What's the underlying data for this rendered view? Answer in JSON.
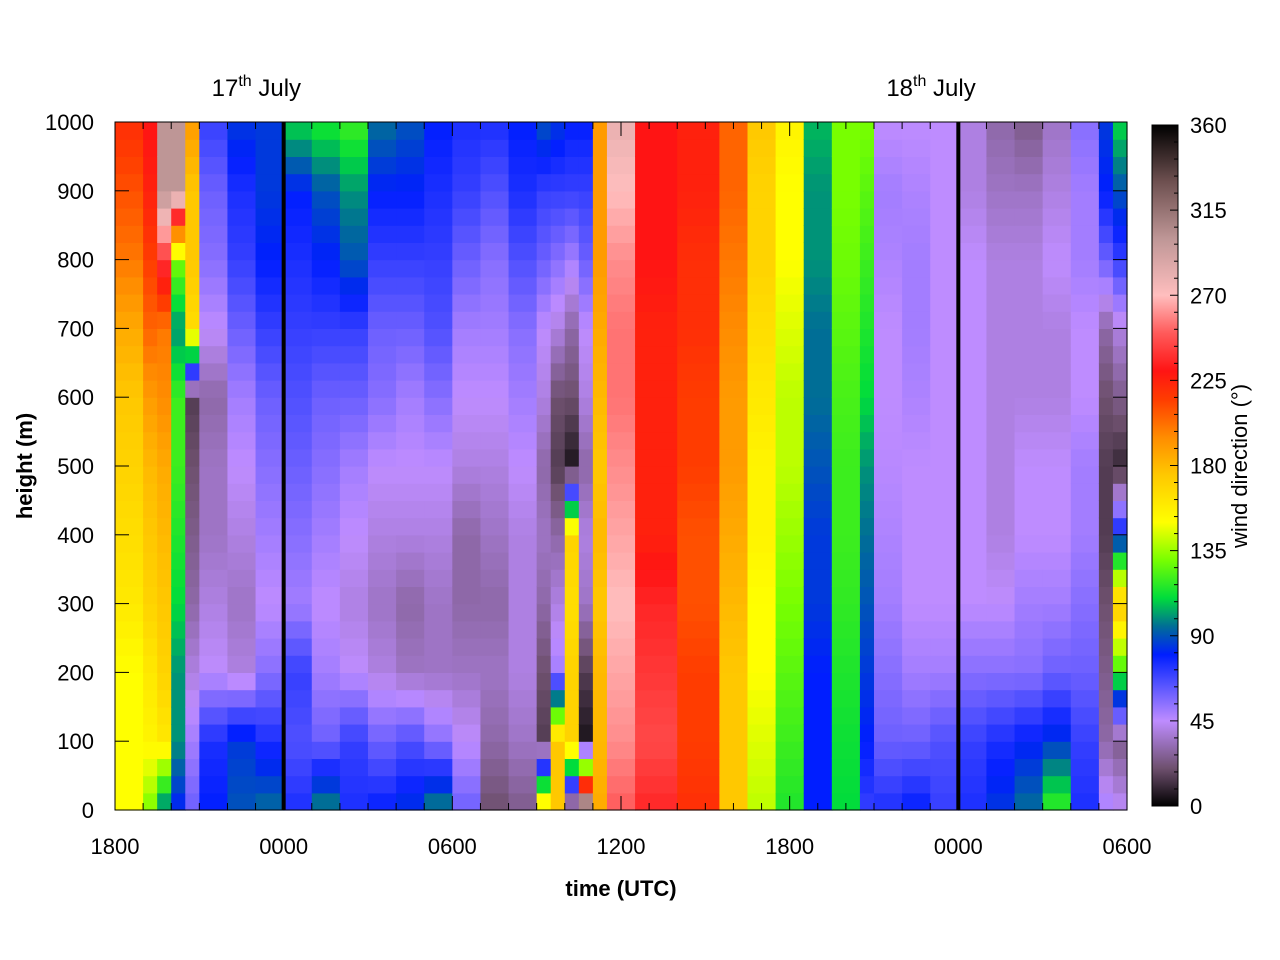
{
  "chart_data": {
    "type": "heatmap",
    "title": "",
    "xlabel": "time (UTC)",
    "ylabel": "height (m)",
    "colorbar_label": "wind direction (°)",
    "x_tick_labels": [
      "1800",
      "0000",
      "0600",
      "1200",
      "1800",
      "0000",
      "0600"
    ],
    "x_hours_from_start": [
      0,
      6,
      12,
      18,
      24,
      30,
      36
    ],
    "xlim_hours": [
      0,
      36
    ],
    "ylim": [
      0,
      1000
    ],
    "y_ticks": [
      0,
      100,
      200,
      300,
      400,
      500,
      600,
      700,
      800,
      900,
      1000
    ],
    "colorbar_ticks": [
      0,
      45,
      90,
      135,
      180,
      225,
      270,
      315,
      360
    ],
    "colorbar_range": [
      0,
      360
    ],
    "day_markers": [
      {
        "label_main": "17",
        "label_sup": "th",
        "label_rest": " July",
        "x_hour": 6
      },
      {
        "label_main": "18",
        "label_sup": "th",
        "label_rest": " July",
        "x_hour": 30
      }
    ],
    "heights_m": [
      0,
      100,
      200,
      300,
      400,
      500,
      600,
      700,
      800,
      900,
      1000
    ],
    "columns": [
      {
        "t": 0.0,
        "dir": [
          150,
          150,
          150,
          160,
          165,
          170,
          175,
          185,
          200,
          210,
          220
        ]
      },
      {
        "t": 1.0,
        "dir": [
          130,
          155,
          160,
          170,
          175,
          180,
          190,
          205,
          215,
          225,
          230
        ]
      },
      {
        "t": 1.5,
        "dir": [
          95,
          160,
          170,
          175,
          180,
          185,
          195,
          200,
          240,
          300,
          300
        ]
      },
      {
        "t": 2.0,
        "dir": [
          80,
          100,
          100,
          110,
          115,
          120,
          120,
          100,
          130,
          300,
          300
        ]
      },
      {
        "t": 2.5,
        "dir": [
          60,
          50,
          40,
          30,
          25,
          20,
          15,
          165,
          175,
          175,
          190
        ]
      },
      {
        "t": 3.0,
        "dir": [
          80,
          75,
          45,
          40,
          35,
          35,
          30,
          45,
          55,
          60,
          70
        ]
      },
      {
        "t": 4.0,
        "dir": [
          90,
          85,
          40,
          35,
          40,
          45,
          50,
          60,
          70,
          75,
          85
        ]
      },
      {
        "t": 5.0,
        "dir": [
          95,
          75,
          55,
          45,
          50,
          55,
          60,
          70,
          80,
          85,
          85
        ]
      },
      {
        "t": 6.0,
        "dir": [
          75,
          65,
          70,
          50,
          55,
          60,
          65,
          70,
          75,
          80,
          110
        ]
      },
      {
        "t": 7.0,
        "dir": [
          100,
          60,
          50,
          45,
          50,
          55,
          60,
          70,
          80,
          90,
          115
        ]
      },
      {
        "t": 8.0,
        "dir": [
          75,
          70,
          45,
          40,
          45,
          50,
          60,
          70,
          90,
          100,
          120
        ]
      },
      {
        "t": 9.0,
        "dir": [
          80,
          60,
          40,
          35,
          40,
          45,
          55,
          60,
          70,
          80,
          95
        ]
      },
      {
        "t": 10.0,
        "dir": [
          85,
          65,
          35,
          30,
          40,
          45,
          50,
          60,
          70,
          80,
          90
        ]
      },
      {
        "t": 11.0,
        "dir": [
          100,
          55,
          35,
          35,
          40,
          45,
          55,
          65,
          70,
          75,
          80
        ]
      },
      {
        "t": 12.0,
        "dir": [
          60,
          45,
          35,
          30,
          30,
          40,
          45,
          50,
          60,
          70,
          75
        ]
      },
      {
        "t": 13.0,
        "dir": [
          20,
          30,
          35,
          30,
          35,
          40,
          45,
          50,
          55,
          65,
          75
        ]
      },
      {
        "t": 14.0,
        "dir": [
          25,
          35,
          40,
          40,
          40,
          45,
          50,
          55,
          65,
          75,
          80
        ]
      },
      {
        "t": 15.0,
        "dir": [
          170,
          15,
          20,
          30,
          35,
          30,
          40,
          45,
          60,
          70,
          90
        ]
      },
      {
        "t": 15.5,
        "dir": [
          175,
          175,
          50,
          40,
          30,
          15,
          20,
          40,
          55,
          70,
          85
        ]
      },
      {
        "t": 16.0,
        "dir": [
          10,
          170,
          170,
          165,
          170,
          5,
          20,
          30,
          50,
          70,
          80
        ]
      },
      {
        "t": 16.5,
        "dir": [
          350,
          5,
          15,
          35,
          40,
          30,
          40,
          45,
          60,
          70,
          80
        ]
      },
      {
        "t": 17.0,
        "dir": [
          185,
          180,
          180,
          175,
          180,
          175,
          180,
          185,
          190,
          190,
          190
        ]
      },
      {
        "t": 17.5,
        "dir": [
          250,
          260,
          265,
          270,
          265,
          260,
          255,
          255,
          260,
          270,
          280
        ]
      },
      {
        "t": 18.5,
        "dir": [
          235,
          245,
          240,
          235,
          225,
          225,
          225,
          225,
          230,
          230,
          230
        ]
      },
      {
        "t": 20.0,
        "dir": [
          220,
          215,
          215,
          210,
          210,
          215,
          215,
          220,
          220,
          225,
          225
        ]
      },
      {
        "t": 21.5,
        "dir": [
          175,
          175,
          175,
          180,
          185,
          190,
          190,
          195,
          200,
          205,
          205
        ]
      },
      {
        "t": 22.5,
        "dir": [
          140,
          145,
          150,
          150,
          155,
          155,
          160,
          165,
          170,
          170,
          175
        ]
      },
      {
        "t": 23.5,
        "dir": [
          115,
          120,
          125,
          130,
          135,
          140,
          140,
          145,
          150,
          150,
          155
        ]
      },
      {
        "t": 24.5,
        "dir": [
          80,
          80,
          80,
          85,
          85,
          90,
          95,
          95,
          100,
          100,
          105
        ]
      },
      {
        "t": 25.5,
        "dir": [
          110,
          112,
          115,
          118,
          120,
          120,
          122,
          125,
          128,
          130,
          130
        ]
      },
      {
        "t": 26.5,
        "dir": [
          70,
          80,
          85,
          90,
          95,
          100,
          110,
          115,
          120,
          125,
          130
        ]
      },
      {
        "t": 27.0,
        "dir": [
          75,
          60,
          55,
          50,
          48,
          46,
          45,
          45,
          48,
          50,
          45
        ]
      },
      {
        "t": 28.0,
        "dir": [
          80,
          60,
          50,
          45,
          45,
          45,
          48,
          50,
          50,
          48,
          45
        ]
      },
      {
        "t": 29.0,
        "dir": [
          70,
          65,
          50,
          45,
          45,
          45,
          45,
          45,
          45,
          45,
          45
        ]
      },
      {
        "t": 30.0,
        "dir": [
          75,
          70,
          55,
          45,
          45,
          45,
          45,
          45,
          45,
          40,
          40
        ]
      },
      {
        "t": 31.0,
        "dir": [
          85,
          75,
          55,
          45,
          40,
          40,
          40,
          40,
          40,
          35,
          30
        ]
      },
      {
        "t": 32.0,
        "dir": [
          95,
          80,
          55,
          50,
          45,
          45,
          40,
          40,
          40,
          35,
          25
        ]
      },
      {
        "t": 33.0,
        "dir": [
          120,
          85,
          60,
          50,
          45,
          45,
          40,
          40,
          45,
          40,
          35
        ]
      },
      {
        "t": 34.0,
        "dir": [
          75,
          70,
          60,
          55,
          50,
          50,
          45,
          45,
          50,
          50,
          55
        ]
      },
      {
        "t": 35.0,
        "dir": [
          50,
          30,
          25,
          20,
          15,
          15,
          20,
          30,
          60,
          80,
          85
        ]
      },
      {
        "t": 35.5,
        "dir": [
          45,
          25,
          120,
          175,
          80,
          10,
          25,
          40,
          70,
          90,
          110
        ]
      },
      {
        "t": 36.0,
        "dir": [
          45,
          25,
          120,
          175,
          80,
          10,
          25,
          40,
          70,
          90,
          110
        ]
      }
    ]
  }
}
